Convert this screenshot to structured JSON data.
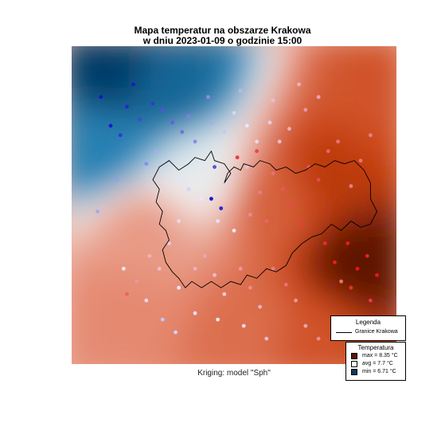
{
  "title": {
    "line1": "Mapa temperatur na obszarze Krakowa",
    "line2": "w dniu 2023-01-09 o godzinie 15:00"
  },
  "caption": "Kriging: model \"Sph\"",
  "legend": {
    "title": "Legenda",
    "boundary_label": "Granice Krakowa",
    "temperature_title": "Temperatura",
    "entries": [
      {
        "label": "max =  8.35 °C",
        "color": "#5c1404"
      },
      {
        "label": "avg =  7.7 °C",
        "color": "#ffffff"
      },
      {
        "label": "min =  6.71 °C",
        "color": "#0b3a5e"
      }
    ]
  },
  "colors": {
    "cold": "#003a66",
    "mid_cold": "#2f8dc0",
    "neutral": "#f4f2f1",
    "mid_warm": "#e5876e",
    "warm": "#c84010",
    "hot": "#5c1404",
    "boundary": "#000000"
  },
  "map_data": {
    "type": "heatmap",
    "temperature_range": [
      6.71,
      8.35
    ],
    "field_sources": [
      {
        "x": 0.12,
        "y": 0.07,
        "t": 6.71
      },
      {
        "x": 0.3,
        "y": 0.12,
        "t": 6.95
      },
      {
        "x": 0.08,
        "y": 0.32,
        "t": 7.1
      },
      {
        "x": 0.4,
        "y": 0.4,
        "t": 7.5
      },
      {
        "x": 0.22,
        "y": 0.58,
        "t": 7.8
      },
      {
        "x": 0.15,
        "y": 0.82,
        "t": 7.85
      },
      {
        "x": 0.62,
        "y": 0.48,
        "t": 8.0
      },
      {
        "x": 0.88,
        "y": 0.68,
        "t": 8.35
      },
      {
        "x": 0.78,
        "y": 0.4,
        "t": 8.15
      },
      {
        "x": 0.95,
        "y": 0.15,
        "t": 8.05
      },
      {
        "x": 0.55,
        "y": 0.9,
        "t": 7.95
      },
      {
        "x": 0.75,
        "y": 0.92,
        "t": 8.05
      }
    ],
    "stations": [
      {
        "x": 0.19,
        "y": 0.12,
        "t": 6.8
      },
      {
        "x": 0.17,
        "y": 0.19,
        "t": 6.85
      },
      {
        "x": 0.21,
        "y": 0.23,
        "t": 6.95
      },
      {
        "x": 0.12,
        "y": 0.25,
        "t": 6.8
      },
      {
        "x": 0.25,
        "y": 0.18,
        "t": 6.9
      },
      {
        "x": 0.28,
        "y": 0.2,
        "t": 7.0
      },
      {
        "x": 0.31,
        "y": 0.24,
        "t": 7.05
      },
      {
        "x": 0.34,
        "y": 0.27,
        "t": 7.1
      },
      {
        "x": 0.36,
        "y": 0.22,
        "t": 7.15
      },
      {
        "x": 0.38,
        "y": 0.3,
        "t": 7.2
      },
      {
        "x": 0.43,
        "y": 0.24,
        "t": 7.3
      },
      {
        "x": 0.47,
        "y": 0.27,
        "t": 7.4
      },
      {
        "x": 0.5,
        "y": 0.21,
        "t": 7.45
      },
      {
        "x": 0.54,
        "y": 0.25,
        "t": 7.55
      },
      {
        "x": 0.57,
        "y": 0.3,
        "t": 7.6
      },
      {
        "x": 0.61,
        "y": 0.24,
        "t": 7.65
      },
      {
        "x": 0.64,
        "y": 0.3,
        "t": 7.7
      },
      {
        "x": 0.67,
        "y": 0.26,
        "t": 7.75
      },
      {
        "x": 0.26,
        "y": 0.33,
        "t": 7.3
      },
      {
        "x": 0.23,
        "y": 0.37,
        "t": 7.2
      },
      {
        "x": 0.3,
        "y": 0.36,
        "t": 7.4
      },
      {
        "x": 0.33,
        "y": 0.42,
        "t": 7.5
      },
      {
        "x": 0.36,
        "y": 0.45,
        "t": 7.45
      },
      {
        "x": 0.4,
        "y": 0.48,
        "t": 7.55
      },
      {
        "x": 0.44,
        "y": 0.38,
        "t": 7.0
      },
      {
        "x": 0.43,
        "y": 0.48,
        "t": 6.8
      },
      {
        "x": 0.46,
        "y": 0.51,
        "t": 6.85
      },
      {
        "x": 0.47,
        "y": 0.43,
        "t": 7.45
      },
      {
        "x": 0.45,
        "y": 0.55,
        "t": 7.5
      },
      {
        "x": 0.5,
        "y": 0.58,
        "t": 7.55
      },
      {
        "x": 0.55,
        "y": 0.53,
        "t": 7.9
      },
      {
        "x": 0.58,
        "y": 0.46,
        "t": 7.95
      },
      {
        "x": 0.54,
        "y": 0.38,
        "t": 7.7
      },
      {
        "x": 0.51,
        "y": 0.35,
        "t": 8.2
      },
      {
        "x": 0.57,
        "y": 0.33,
        "t": 8.15
      },
      {
        "x": 0.6,
        "y": 0.55,
        "t": 8.05
      },
      {
        "x": 0.62,
        "y": 0.4,
        "t": 8.0
      },
      {
        "x": 0.65,
        "y": 0.45,
        "t": 8.1
      },
      {
        "x": 0.68,
        "y": 0.5,
        "t": 8.15
      },
      {
        "x": 0.71,
        "y": 0.56,
        "t": 8.2
      },
      {
        "x": 0.73,
        "y": 0.38,
        "t": 8.1
      },
      {
        "x": 0.76,
        "y": 0.42,
        "t": 8.15
      },
      {
        "x": 0.79,
        "y": 0.33,
        "t": 8.05
      },
      {
        "x": 0.82,
        "y": 0.3,
        "t": 8.0
      },
      {
        "x": 0.78,
        "y": 0.62,
        "t": 8.25
      },
      {
        "x": 0.81,
        "y": 0.68,
        "t": 8.3
      },
      {
        "x": 0.85,
        "y": 0.62,
        "t": 8.32
      },
      {
        "x": 0.88,
        "y": 0.7,
        "t": 8.34
      },
      {
        "x": 0.91,
        "y": 0.66,
        "t": 8.3
      },
      {
        "x": 0.94,
        "y": 0.72,
        "t": 8.33
      },
      {
        "x": 0.86,
        "y": 0.76,
        "t": 8.25
      },
      {
        "x": 0.92,
        "y": 0.8,
        "t": 8.2
      },
      {
        "x": 0.83,
        "y": 0.74,
        "t": 8.0
      },
      {
        "x": 0.86,
        "y": 0.44,
        "t": 7.95
      },
      {
        "x": 0.89,
        "y": 0.36,
        "t": 8.0
      },
      {
        "x": 0.92,
        "y": 0.28,
        "t": 7.95
      },
      {
        "x": 0.72,
        "y": 0.2,
        "t": 7.85
      },
      {
        "x": 0.76,
        "y": 0.16,
        "t": 7.8
      },
      {
        "x": 0.7,
        "y": 0.12,
        "t": 7.75
      },
      {
        "x": 0.62,
        "y": 0.17,
        "t": 7.7
      },
      {
        "x": 0.33,
        "y": 0.55,
        "t": 7.6
      },
      {
        "x": 0.3,
        "y": 0.62,
        "t": 7.65
      },
      {
        "x": 0.27,
        "y": 0.7,
        "t": 7.7
      },
      {
        "x": 0.24,
        "y": 0.66,
        "t": 7.75
      },
      {
        "x": 0.2,
        "y": 0.74,
        "t": 7.85
      },
      {
        "x": 0.17,
        "y": 0.78,
        "t": 8.05
      },
      {
        "x": 0.23,
        "y": 0.8,
        "t": 7.6
      },
      {
        "x": 0.33,
        "y": 0.76,
        "t": 7.55
      },
      {
        "x": 0.38,
        "y": 0.7,
        "t": 7.75
      },
      {
        "x": 0.41,
        "y": 0.66,
        "t": 7.8
      },
      {
        "x": 0.44,
        "y": 0.72,
        "t": 7.7
      },
      {
        "x": 0.47,
        "y": 0.78,
        "t": 7.65
      },
      {
        "x": 0.52,
        "y": 0.7,
        "t": 7.85
      },
      {
        "x": 0.55,
        "y": 0.76,
        "t": 7.9
      },
      {
        "x": 0.58,
        "y": 0.82,
        "t": 7.75
      },
      {
        "x": 0.62,
        "y": 0.7,
        "t": 7.95
      },
      {
        "x": 0.66,
        "y": 0.75,
        "t": 8.0
      },
      {
        "x": 0.69,
        "y": 0.8,
        "t": 7.85
      },
      {
        "x": 0.72,
        "y": 0.88,
        "t": 7.8
      },
      {
        "x": 0.76,
        "y": 0.92,
        "t": 7.9
      },
      {
        "x": 0.6,
        "y": 0.92,
        "t": 7.7
      },
      {
        "x": 0.53,
        "y": 0.88,
        "t": 7.6
      },
      {
        "x": 0.45,
        "y": 0.86,
        "t": 7.55
      },
      {
        "x": 0.38,
        "y": 0.84,
        "t": 7.5
      },
      {
        "x": 0.32,
        "y": 0.9,
        "t": 7.45
      },
      {
        "x": 0.28,
        "y": 0.86,
        "t": 7.4
      },
      {
        "x": 0.16,
        "y": 0.7,
        "t": 7.55
      },
      {
        "x": 0.08,
        "y": 0.52,
        "t": 7.3
      },
      {
        "x": 0.14,
        "y": 0.42,
        "t": 7.25
      },
      {
        "x": 0.42,
        "y": 0.16,
        "t": 7.2
      },
      {
        "x": 0.52,
        "y": 0.14,
        "t": 7.35
      },
      {
        "x": 0.09,
        "y": 0.16,
        "t": 6.78
      },
      {
        "x": 0.15,
        "y": 0.28,
        "t": 6.9
      }
    ],
    "city_boundary": [
      [
        0.27,
        0.38
      ],
      [
        0.3,
        0.36
      ],
      [
        0.33,
        0.39
      ],
      [
        0.36,
        0.37
      ],
      [
        0.38,
        0.35
      ],
      [
        0.41,
        0.36
      ],
      [
        0.43,
        0.33
      ],
      [
        0.44,
        0.36
      ],
      [
        0.47,
        0.37
      ],
      [
        0.49,
        0.4
      ],
      [
        0.47,
        0.43
      ],
      [
        0.48,
        0.4
      ],
      [
        0.5,
        0.38
      ],
      [
        0.52,
        0.39
      ],
      [
        0.53,
        0.37
      ],
      [
        0.56,
        0.38
      ],
      [
        0.58,
        0.36
      ],
      [
        0.61,
        0.37
      ],
      [
        0.63,
        0.39
      ],
      [
        0.66,
        0.38
      ],
      [
        0.69,
        0.4
      ],
      [
        0.72,
        0.39
      ],
      [
        0.75,
        0.37
      ],
      [
        0.78,
        0.38
      ],
      [
        0.81,
        0.36
      ],
      [
        0.84,
        0.37
      ],
      [
        0.87,
        0.36
      ],
      [
        0.9,
        0.39
      ],
      [
        0.92,
        0.43
      ],
      [
        0.92,
        0.48
      ],
      [
        0.94,
        0.52
      ],
      [
        0.92,
        0.56
      ],
      [
        0.89,
        0.57
      ],
      [
        0.86,
        0.55
      ],
      [
        0.83,
        0.58
      ],
      [
        0.8,
        0.56
      ],
      [
        0.77,
        0.59
      ],
      [
        0.74,
        0.6
      ],
      [
        0.71,
        0.62
      ],
      [
        0.68,
        0.65
      ],
      [
        0.66,
        0.69
      ],
      [
        0.63,
        0.71
      ],
      [
        0.6,
        0.7
      ],
      [
        0.57,
        0.73
      ],
      [
        0.54,
        0.72
      ],
      [
        0.52,
        0.75
      ],
      [
        0.49,
        0.74
      ],
      [
        0.46,
        0.76
      ],
      [
        0.43,
        0.74
      ],
      [
        0.4,
        0.76
      ],
      [
        0.37,
        0.74
      ],
      [
        0.35,
        0.76
      ],
      [
        0.33,
        0.73
      ],
      [
        0.31,
        0.71
      ],
      [
        0.29,
        0.68
      ],
      [
        0.28,
        0.64
      ],
      [
        0.3,
        0.61
      ],
      [
        0.29,
        0.58
      ],
      [
        0.27,
        0.56
      ],
      [
        0.28,
        0.52
      ],
      [
        0.26,
        0.49
      ],
      [
        0.27,
        0.45
      ],
      [
        0.25,
        0.42
      ],
      [
        0.27,
        0.38
      ]
    ]
  }
}
